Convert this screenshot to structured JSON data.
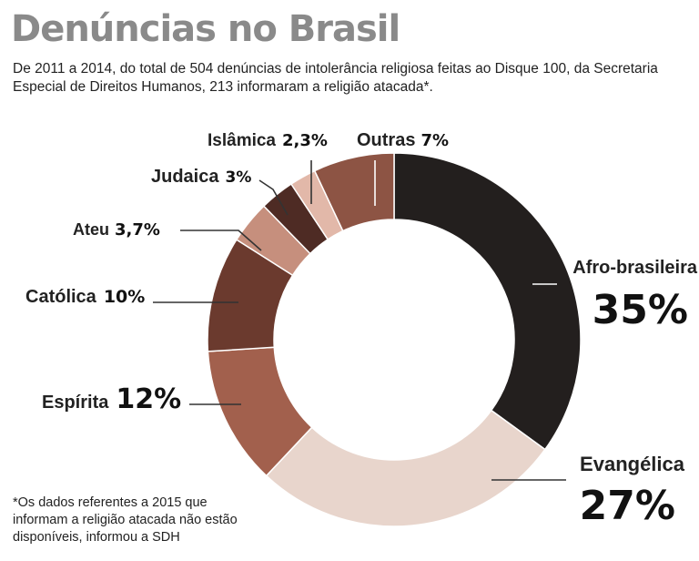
{
  "title": "Denúncias no Brasil",
  "subtitle": "De 2011 a 2014, do total de 504 denúncias de intolerância religiosa feitas ao Disque 100, da Secretaria Especial de Direitos Humanos, 213 informaram a religião atacada*.",
  "footnote": "*Os dados referentes a 2015 que informam a religião atacada não estão disponíveis, informou a SDH",
  "chart_data": {
    "type": "pie",
    "variant": "donut",
    "unit": "%",
    "slices": [
      {
        "label": "Afro-brasileira",
        "value": 35,
        "value_label": "35%",
        "color": "#231f1e"
      },
      {
        "label": "Evangélica",
        "value": 27,
        "value_label": "27%",
        "color": "#e8d5cc"
      },
      {
        "label": "Espírita",
        "value": 12,
        "value_label": "12%",
        "color": "#a2604d"
      },
      {
        "label": "Católica",
        "value": 10,
        "value_label": "10%",
        "color": "#6b3a2e"
      },
      {
        "label": "Ateu",
        "value": 3.7,
        "value_label": "3,7%",
        "color": "#c68f7d"
      },
      {
        "label": "Judaica",
        "value": 3,
        "value_label": "3%",
        "color": "#4e2b24"
      },
      {
        "label": "Islâmica",
        "value": 2.3,
        "value_label": "2,3%",
        "color": "#e2b8a9"
      },
      {
        "label": "Outras",
        "value": 7,
        "value_label": "7%",
        "color": "#8d5444"
      }
    ]
  }
}
